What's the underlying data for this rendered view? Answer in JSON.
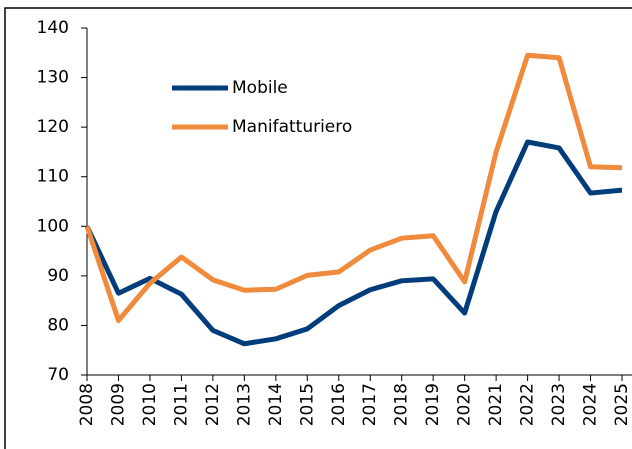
{
  "chart_data": {
    "type": "line",
    "categories": [
      "2008",
      "2009",
      "2010",
      "2011",
      "2012",
      "2013",
      "2014",
      "2015",
      "2016",
      "2017",
      "2018",
      "2019",
      "2020",
      "2021",
      "2022",
      "2023",
      "2024",
      "2025"
    ],
    "series": [
      {
        "name": "Mobile",
        "color": "#003d7a",
        "values": [
          100,
          86.5,
          89.5,
          86.3,
          79,
          76.3,
          77.3,
          79.3,
          84,
          87.2,
          89,
          89.4,
          82.5,
          103,
          117,
          115.8,
          106.7,
          107.3
        ]
      },
      {
        "name": "Manifatturiero",
        "color": "#f08a3c",
        "values": [
          100,
          81,
          88.5,
          93.8,
          89.2,
          87.1,
          87.3,
          90.1,
          90.8,
          95.2,
          97.6,
          98.1,
          88.8,
          115,
          134.5,
          134,
          112,
          111.8
        ]
      }
    ],
    "ylim": [
      70,
      140
    ],
    "yticks": [
      70,
      80,
      90,
      100,
      110,
      120,
      130,
      140
    ]
  }
}
